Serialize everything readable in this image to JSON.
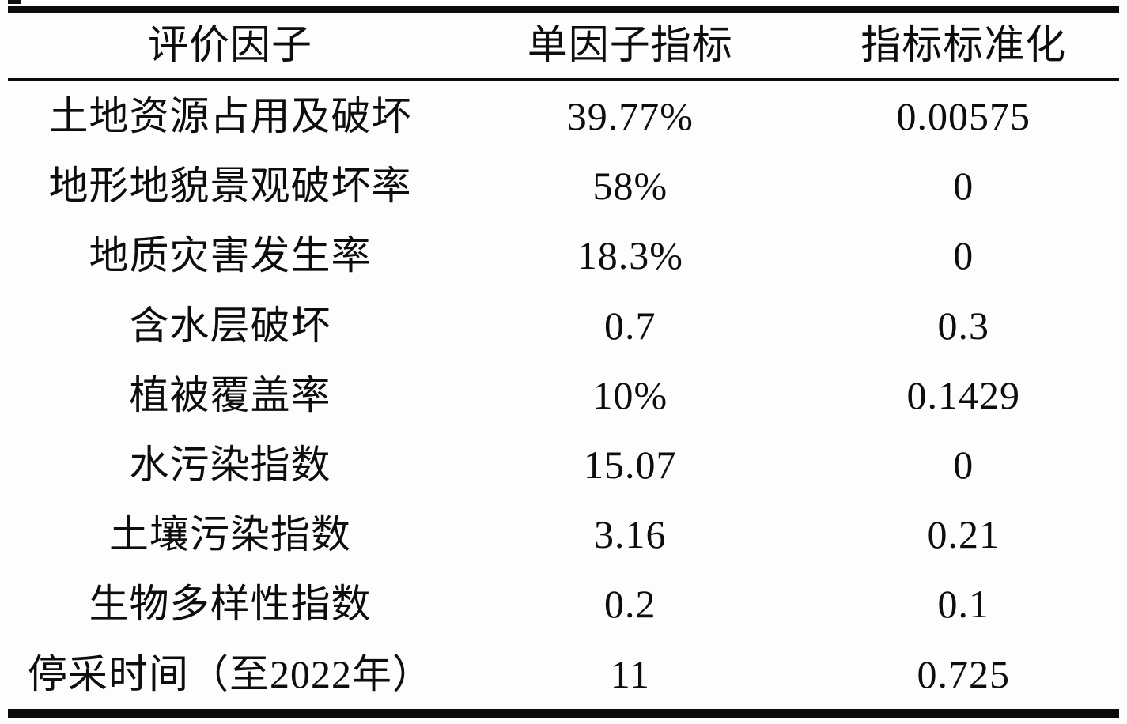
{
  "table": {
    "columns": {
      "factor": "评价因子",
      "indicator": "单因子指标",
      "standardized": "指标标准化"
    },
    "rows": [
      {
        "factor": "土地资源占用及破坏",
        "indicator": "39.77%",
        "standardized": "0.00575"
      },
      {
        "factor": "地形地貌景观破坏率",
        "indicator": "58%",
        "standardized": "0"
      },
      {
        "factor": "地质灾害发生率",
        "indicator": "18.3%",
        "standardized": "0"
      },
      {
        "factor": "含水层破坏",
        "indicator": "0.7",
        "standardized": "0.3"
      },
      {
        "factor": "植被覆盖率",
        "indicator": "10%",
        "standardized": "0.1429"
      },
      {
        "factor": "水污染指数",
        "indicator": "15.07",
        "standardized": "0"
      },
      {
        "factor": "土壤污染指数",
        "indicator": "3.16",
        "standardized": "0.21"
      },
      {
        "factor": "生物多样性指数",
        "indicator": "0.2",
        "standardized": "0.1"
      },
      {
        "factor": "停采时间（至2022年）",
        "indicator": "11",
        "standardized": "0.725"
      }
    ]
  },
  "chart_data": {
    "type": "table",
    "title": "",
    "columns": [
      "评价因子",
      "单因子指标",
      "指标标准化"
    ],
    "rows": [
      [
        "土地资源占用及破坏",
        "39.77%",
        "0.00575"
      ],
      [
        "地形地貌景观破坏率",
        "58%",
        "0"
      ],
      [
        "地质灾害发生率",
        "18.3%",
        "0"
      ],
      [
        "含水层破坏",
        "0.7",
        "0.3"
      ],
      [
        "植被覆盖率",
        "10%",
        "0.1429"
      ],
      [
        "水污染指数",
        "15.07",
        "0"
      ],
      [
        "土壤污染指数",
        "3.16",
        "0.21"
      ],
      [
        "生物多样性指数",
        "0.2",
        "0.1"
      ],
      [
        "停采时间（至2022年）",
        "11",
        "0.725"
      ]
    ]
  }
}
